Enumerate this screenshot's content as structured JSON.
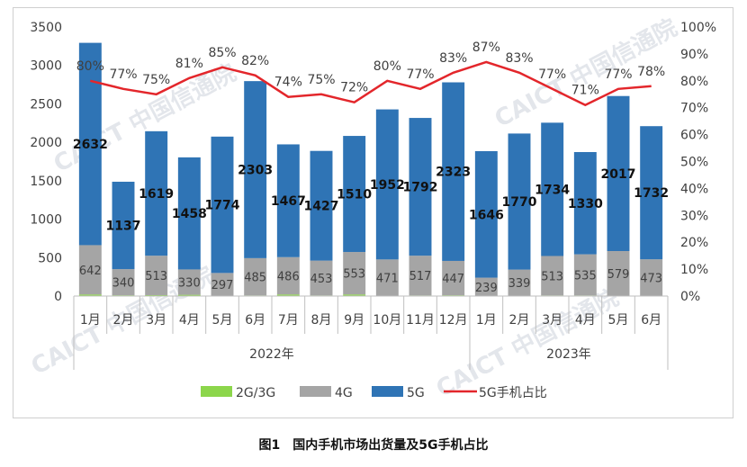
{
  "figure_caption": "图1　国内手机市场出货量及5G手机占比",
  "watermark": "CAICT 中国信通院",
  "colors": {
    "g23": "#8cd64b",
    "g4": "#a5a5a5",
    "g5": "#2f74b5",
    "share_line": "#e3262b",
    "axis": "#bfbfbf",
    "text": "#404040"
  },
  "chart_data": {
    "type": "bar",
    "stacked": true,
    "categories": [
      "1月",
      "2月",
      "3月",
      "4月",
      "5月",
      "6月",
      "7月",
      "8月",
      "9月",
      "10月",
      "11月",
      "12月",
      "1月",
      "2月",
      "3月",
      "4月",
      "5月",
      "6月"
    ],
    "year_groups": [
      {
        "label": "2022年",
        "count": 12
      },
      {
        "label": "2023年",
        "count": 6
      }
    ],
    "series": [
      {
        "name": "2G/3G",
        "key": "g23",
        "values": [
          20,
          10,
          12,
          16,
          3,
          8,
          20,
          8,
          20,
          5,
          8,
          10,
          0,
          5,
          8,
          8,
          6,
          5
        ]
      },
      {
        "name": "4G",
        "key": "g4",
        "values": [
          642,
          340,
          513,
          330,
          297,
          485,
          486,
          453,
          553,
          471,
          517,
          447,
          239,
          339,
          513,
          535,
          579,
          473
        ]
      },
      {
        "name": "5G",
        "key": "g5",
        "values": [
          2632,
          1137,
          1619,
          1458,
          1774,
          2303,
          1467,
          1427,
          1510,
          1952,
          1792,
          2323,
          1646,
          1770,
          1734,
          1330,
          2017,
          1732
        ]
      }
    ],
    "line_series": {
      "name": "5G手机占比",
      "values": [
        80,
        77,
        75,
        81,
        85,
        82,
        74,
        75,
        72,
        80,
        77,
        83,
        87,
        83,
        77,
        71,
        77,
        78
      ],
      "labels": [
        "80%",
        "77%",
        "75%",
        "81%",
        "85%",
        "82%",
        "74%",
        "75%",
        "72%",
        "80%",
        "77%",
        "83%",
        "87%",
        "83%",
        "77%",
        "71%",
        "77%",
        "78%"
      ]
    },
    "y_left": {
      "min": 0,
      "max": 3500,
      "ticks": [
        "0",
        "500",
        "1000",
        "1500",
        "2000",
        "2500",
        "3000",
        "3500"
      ]
    },
    "y_right": {
      "min": 0,
      "max": 100,
      "ticks": [
        "0%",
        "10%",
        "20%",
        "30%",
        "40%",
        "50%",
        "60%",
        "70%",
        "80%",
        "90%",
        "100%"
      ]
    },
    "legend": {
      "position": "bottom",
      "items": [
        "2G/3G",
        "4G",
        "5G",
        "5G手机占比"
      ]
    }
  }
}
